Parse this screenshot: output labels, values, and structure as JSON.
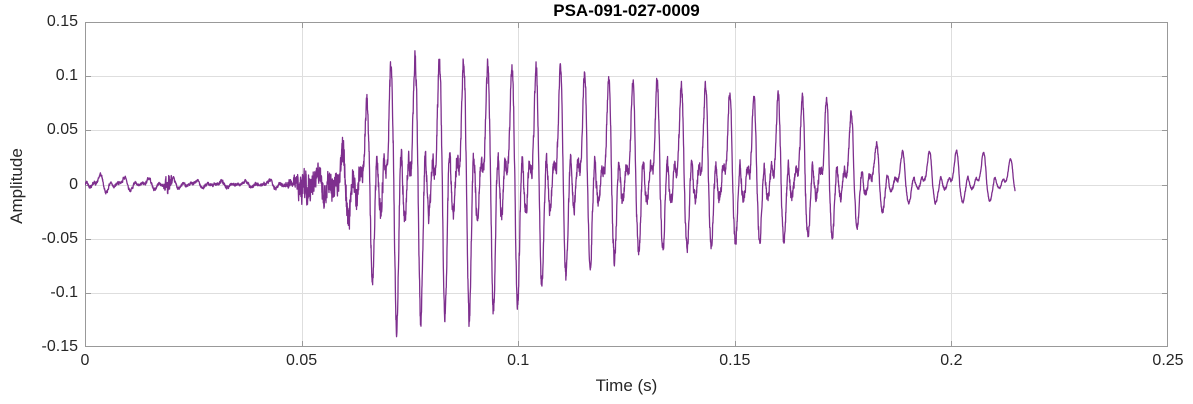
{
  "chart_data": {
    "type": "line",
    "title": "PSA-091-027-0009",
    "xlabel": "Time (s)",
    "ylabel": "Amplitude",
    "xlim": [
      0,
      0.25
    ],
    "ylim": [
      -0.15,
      0.15
    ],
    "xticks": [
      "0",
      "0.05",
      "0.1",
      "0.15",
      "0.2",
      "0.25"
    ],
    "yticks": [
      "-0.15",
      "-0.1",
      "-0.05",
      "0",
      "0.05",
      "0.1",
      "0.15"
    ],
    "grid": true,
    "legend": null,
    "line_color": "#7E2F8E",
    "signal": {
      "description": "speech-like acoustic waveform: quiet lead-in, click at 0.019 s, noise onset at 0.05 s, voiced burst 0.06-0.18 s peaking +0.118/-0.139 near 0.074 s, decaying tail of small humps ending at 0.2147 s",
      "duration_s": 0.2147,
      "f0_hz_main": 179,
      "f0_hz_tail": 160,
      "click_time_s": 0.019,
      "peak_amplitude": 0.118,
      "min_amplitude": -0.139,
      "envelope_t_pos_neg": [
        [
          0.0,
          0.01,
          0.008
        ],
        [
          0.004,
          0.009,
          0.008
        ],
        [
          0.008,
          0.007,
          0.006
        ],
        [
          0.014,
          0.006,
          0.005
        ],
        [
          0.02,
          0.005,
          0.004
        ],
        [
          0.028,
          0.003,
          0.003
        ],
        [
          0.04,
          0.003,
          0.003
        ],
        [
          0.048,
          0.005,
          0.005
        ],
        [
          0.052,
          0.009,
          0.008
        ],
        [
          0.056,
          0.016,
          0.014
        ],
        [
          0.06,
          0.035,
          0.03
        ],
        [
          0.064,
          0.07,
          0.065
        ],
        [
          0.068,
          0.1,
          0.105
        ],
        [
          0.072,
          0.112,
          0.132
        ],
        [
          0.076,
          0.115,
          0.128
        ],
        [
          0.082,
          0.113,
          0.12
        ],
        [
          0.088,
          0.116,
          0.126
        ],
        [
          0.094,
          0.108,
          0.116
        ],
        [
          0.1,
          0.108,
          0.11
        ],
        [
          0.106,
          0.105,
          0.094
        ],
        [
          0.112,
          0.107,
          0.082
        ],
        [
          0.118,
          0.099,
          0.074
        ],
        [
          0.124,
          0.095,
          0.067
        ],
        [
          0.13,
          0.096,
          0.061
        ],
        [
          0.136,
          0.093,
          0.057
        ],
        [
          0.142,
          0.093,
          0.059
        ],
        [
          0.148,
          0.086,
          0.055
        ],
        [
          0.154,
          0.081,
          0.051
        ],
        [
          0.16,
          0.083,
          0.053
        ],
        [
          0.166,
          0.081,
          0.049
        ],
        [
          0.172,
          0.079,
          0.049
        ],
        [
          0.176,
          0.07,
          0.045
        ],
        [
          0.18,
          0.048,
          0.036
        ],
        [
          0.184,
          0.034,
          0.025
        ],
        [
          0.188,
          0.03,
          0.018
        ],
        [
          0.194,
          0.03,
          0.017
        ],
        [
          0.2,
          0.031,
          0.017
        ],
        [
          0.206,
          0.03,
          0.016
        ],
        [
          0.21,
          0.029,
          0.015
        ],
        [
          0.2147,
          0.022,
          0.01
        ]
      ],
      "noise_envelope_t_amp": [
        [
          0.0,
          0.0015
        ],
        [
          0.018,
          0.0015
        ],
        [
          0.019,
          0.012
        ],
        [
          0.0205,
          0.0015
        ],
        [
          0.046,
          0.0015
        ],
        [
          0.049,
          0.01
        ],
        [
          0.0505,
          0.016
        ],
        [
          0.053,
          0.01
        ],
        [
          0.057,
          0.012
        ],
        [
          0.061,
          0.014
        ],
        [
          0.064,
          0.01
        ],
        [
          0.075,
          0.009
        ],
        [
          0.09,
          0.008
        ],
        [
          0.11,
          0.007
        ],
        [
          0.14,
          0.006
        ],
        [
          0.17,
          0.005
        ],
        [
          0.182,
          0.003
        ],
        [
          0.19,
          0.0015
        ],
        [
          0.2147,
          0.001
        ]
      ]
    },
    "style": {
      "axis_box_color": "#999999",
      "grid_color": "#DEDEDE",
      "tick_text_color": "#262626",
      "title_color": "#000000",
      "background": "#ffffff"
    }
  }
}
